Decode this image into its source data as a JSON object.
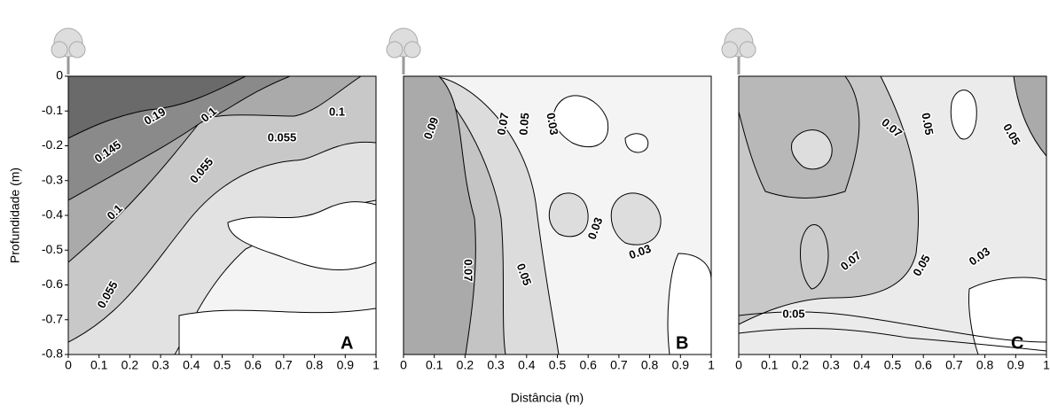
{
  "axis_labels": {
    "y": "Profundidade (m)",
    "x": "Distância (m)"
  },
  "chart_data": [
    {
      "type": "contour",
      "panel_label": "A",
      "xlim": [
        0,
        1
      ],
      "ylim": [
        -0.8,
        0
      ],
      "xticks": [
        0,
        0.1,
        0.2,
        0.3,
        0.4,
        0.5,
        0.6,
        0.7,
        0.8,
        0.9,
        1
      ],
      "yticks": [
        0,
        -0.1,
        -0.2,
        -0.3,
        -0.4,
        -0.5,
        -0.6,
        -0.7,
        -0.8
      ],
      "contour_labels": [
        0.19,
        0.1,
        0.1,
        0.145,
        0.055,
        0.055,
        0.1,
        0.055
      ]
    },
    {
      "type": "contour",
      "panel_label": "B",
      "xlim": [
        0,
        1
      ],
      "ylim": [
        -0.8,
        0
      ],
      "xticks": [
        0,
        0.1,
        0.2,
        0.3,
        0.4,
        0.5,
        0.6,
        0.7,
        0.8,
        0.9,
        1
      ],
      "contour_labels": [
        0.09,
        0.07,
        0.05,
        0.03,
        0.03,
        0.03,
        0.07,
        0.05
      ]
    },
    {
      "type": "contour",
      "panel_label": "C",
      "xlim": [
        0,
        1
      ],
      "ylim": [
        -0.8,
        0
      ],
      "xticks": [
        0,
        0.1,
        0.2,
        0.3,
        0.4,
        0.5,
        0.6,
        0.7,
        0.8,
        0.9,
        1
      ],
      "contour_labels": [
        0.07,
        0.05,
        0.05,
        0.07,
        0.05,
        0.03,
        0.05
      ]
    }
  ]
}
